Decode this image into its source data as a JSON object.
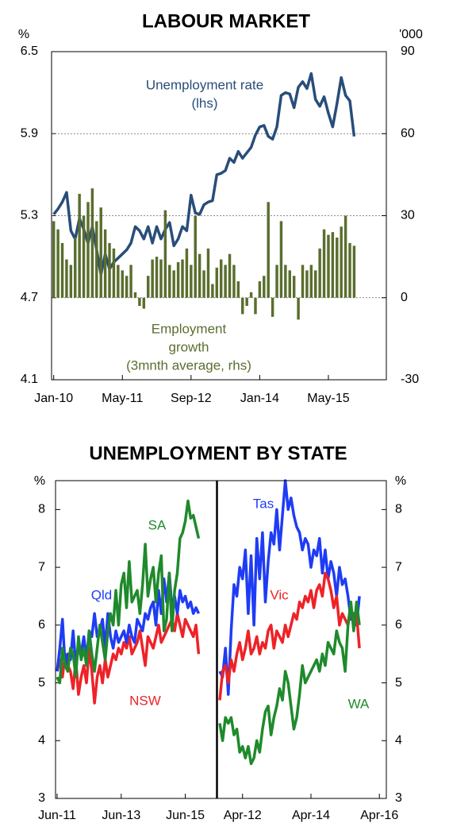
{
  "chart_data": [
    {
      "type": "bar-line",
      "title": "LABOUR MARKET",
      "y_label": "%",
      "y2_label": "'000",
      "categories": [
        "Jan-10",
        null,
        null,
        null,
        null,
        null,
        null,
        null,
        null,
        null,
        null,
        null,
        null,
        null,
        null,
        null,
        "May-11",
        null,
        null,
        null,
        null,
        null,
        null,
        null,
        null,
        null,
        null,
        null,
        null,
        null,
        null,
        null,
        "Sep-12",
        null,
        null,
        null,
        null,
        null,
        null,
        null,
        null,
        null,
        null,
        null,
        null,
        null,
        null,
        null,
        "Jan-14",
        null,
        null,
        null,
        null,
        null,
        null,
        null,
        null,
        null,
        null,
        null,
        null,
        null,
        null,
        null,
        "May-15",
        null,
        null,
        null,
        null,
        null,
        null,
        null,
        null,
        null,
        null,
        null,
        null,
        null
      ],
      "series": [
        {
          "type": "line",
          "name_lines": [
            "Unemployment rate",
            "(lhs)"
          ],
          "color": "#284d7a",
          "values": [
            5.31,
            5.35,
            5.4,
            5.47,
            5.19,
            5.13,
            5.28,
            5.2,
            5.1,
            5.22,
            5.05,
            4.87,
            5.02,
            4.91,
            4.96,
            4.99,
            5.02,
            5.05,
            5.1,
            5.22,
            5.19,
            5.13,
            5.22,
            5.1,
            5.22,
            5.13,
            5.2,
            5.25,
            5.08,
            5.13,
            5.22,
            5.19,
            5.45,
            5.32,
            5.31,
            5.38,
            5.4,
            5.41,
            5.6,
            5.61,
            5.63,
            5.72,
            5.69,
            5.77,
            5.72,
            5.76,
            5.8,
            5.89,
            5.95,
            5.96,
            5.88,
            5.86,
            5.95,
            6.18,
            6.2,
            6.19,
            6.09,
            6.24,
            6.28,
            6.23,
            6.34,
            6.15,
            6.1,
            6.17,
            6.05,
            5.95,
            6.12,
            6.31,
            6.18,
            6.14,
            5.88,
            null,
            null,
            null,
            null,
            null,
            null,
            null
          ]
        },
        {
          "type": "bar",
          "axis": "y2",
          "name_lines": [
            "Employment",
            "growth",
            "(3mnth average, rhs)"
          ],
          "color": "#5a6e2e",
          "values": [
            28,
            25,
            20,
            14,
            12,
            22,
            38,
            30,
            35,
            40,
            28,
            33,
            25,
            20,
            18,
            12,
            10,
            8,
            12,
            2,
            -3,
            -4,
            8,
            14,
            15,
            14,
            32,
            12,
            10,
            13,
            14,
            18,
            12,
            30,
            16,
            10,
            18,
            5,
            11,
            14,
            12,
            16,
            12,
            6,
            -6,
            -3,
            2,
            -6,
            6,
            8,
            35,
            -7,
            12,
            28,
            12,
            10,
            8,
            -8,
            12,
            10,
            12,
            10,
            18,
            25,
            23,
            24,
            22,
            26,
            30,
            20,
            19,
            null,
            null,
            null,
            null,
            null,
            null,
            null
          ]
        }
      ],
      "ylim": [
        4.1,
        6.5
      ],
      "yticks": [
        4.1,
        4.7,
        5.3,
        5.9,
        6.5
      ],
      "y2lim": [
        -30,
        90
      ],
      "y2ticks": [
        -30,
        0,
        30,
        60,
        90
      ],
      "grid": true
    },
    {
      "type": "line",
      "title": "UNEMPLOYMENT BY STATE",
      "y_label": "%",
      "y2_label": "%",
      "ylim": [
        3,
        8.5
      ],
      "yticks": [
        3,
        4,
        5,
        6,
        7,
        8
      ],
      "grid": false,
      "panels": [
        {
          "categories": [
            "Jun-11",
            null,
            null,
            null,
            null,
            null,
            null,
            null,
            null,
            null,
            null,
            null,
            null,
            null,
            null,
            null,
            null,
            null,
            null,
            null,
            null,
            null,
            null,
            null,
            "Jun-13",
            null,
            null,
            null,
            null,
            null,
            null,
            null,
            null,
            null,
            null,
            null,
            null,
            null,
            null,
            null,
            null,
            null,
            null,
            null,
            null,
            null,
            null,
            null,
            "Jun-15",
            null,
            null,
            null,
            null,
            null,
            null,
            null,
            null,
            null,
            null,
            null
          ],
          "series": [
            {
              "name": "NSW",
              "color": "#ee2228",
              "values": [
                5.2,
                5.4,
                5.1,
                5.5,
                5.3,
                5.2,
                4.9,
                5.4,
                4.8,
                5.1,
                5.3,
                5.0,
                5.6,
                5.2,
                4.65,
                5.1,
                5.3,
                5.0,
                5.4,
                5.1,
                5.3,
                5.5,
                5.4,
                5.6,
                5.5,
                5.7,
                5.6,
                5.8,
                5.5,
                5.6,
                5.7,
                5.9,
                5.6,
                5.3,
                5.8,
                5.7,
                5.6,
                5.8,
                6.0,
                5.7,
                5.8,
                5.9,
                6.0,
                6.1,
                5.9,
                6.2,
                6.0,
                5.8,
                6.1,
                6.0,
                5.9,
                5.8,
                6.0,
                5.5,
                null,
                null,
                null,
                null,
                null,
                null
              ]
            },
            {
              "name": "Qld",
              "color": "#1f3cf5",
              "values": [
                5.2,
                5.6,
                6.1,
                5.3,
                5.5,
                5.4,
                5.9,
                5.3,
                5.6,
                5.5,
                5.8,
                5.4,
                5.9,
                5.8,
                6.2,
                5.8,
                5.9,
                6.1,
                5.6,
                6.2,
                5.8,
                5.6,
                5.9,
                5.7,
                5.8,
                5.9,
                5.7,
                6.0,
                5.8,
                5.7,
                6.1,
                6.0,
                5.9,
                6.2,
                6.1,
                6.3,
                6.4,
                6.0,
                6.6,
                6.2,
                6.8,
                6.4,
                6.9,
                6.3,
                6.5,
                6.2,
                6.6,
                6.4,
                6.5,
                6.3,
                6.4,
                6.2,
                6.3,
                6.2,
                null,
                null,
                null,
                null,
                null,
                null
              ]
            },
            {
              "name": "SA",
              "color": "#1f8a2c",
              "values": [
                5.1,
                5.0,
                5.6,
                5.3,
                5.2,
                5.6,
                5.5,
                5.1,
                5.8,
                5.4,
                5.6,
                5.3,
                5.9,
                5.5,
                5.2,
                5.6,
                6.0,
                5.7,
                5.4,
                5.9,
                6.2,
                6.0,
                6.6,
                6.0,
                6.7,
                6.9,
                6.3,
                7.1,
                6.4,
                6.5,
                6.6,
                6.2,
                6.7,
                7.4,
                6.5,
                6.8,
                7.0,
                6.4,
                6.9,
                7.2,
                5.9,
                6.1,
                6.9,
                5.9,
                6.6,
                6.9,
                7.5,
                7.6,
                7.8,
                8.15,
                7.85,
                7.9,
                7.7,
                7.5,
                null,
                null,
                null,
                null,
                null,
                null
              ]
            }
          ]
        },
        {
          "categories": [
            null,
            null,
            null,
            null,
            null,
            null,
            null,
            null,
            "Apr-12",
            null,
            null,
            null,
            null,
            null,
            null,
            null,
            null,
            null,
            null,
            null,
            null,
            null,
            null,
            null,
            null,
            null,
            null,
            null,
            null,
            null,
            null,
            null,
            "Apr-14",
            null,
            null,
            null,
            null,
            null,
            null,
            null,
            null,
            null,
            null,
            null,
            null,
            null,
            null,
            null,
            null,
            null,
            null,
            null,
            null,
            null,
            null,
            null,
            "Apr-16",
            null,
            null
          ],
          "series": [
            {
              "name": "Tas",
              "color": "#1f3cf5",
              "values": [
                5.2,
                5.1,
                5.6,
                4.8,
                5.9,
                6.7,
                6.5,
                7.0,
                6.8,
                7.3,
                6.2,
                7.2,
                6.0,
                7.5,
                6.8,
                7.6,
                6.4,
                7.1,
                7.6,
                7.4,
                8.0,
                7.3,
                7.9,
                8.5,
                8.0,
                8.2,
                7.9,
                7.7,
                7.6,
                7.3,
                7.5,
                7.4,
                7.0,
                7.3,
                7.2,
                7.5,
                6.9,
                7.3,
                6.8,
                7.1,
                6.9,
                6.5,
                7.0,
                6.7,
                6.8,
                6.5,
                6.1,
                6.2,
                6.0,
                6.5,
                null,
                null,
                null,
                null,
                null,
                null,
                null,
                null,
                null
              ]
            },
            {
              "name": "Vic",
              "color": "#ee2228",
              "values": [
                4.7,
                5.2,
                5.3,
                5.0,
                5.4,
                5.2,
                5.5,
                5.7,
                5.4,
                5.6,
                5.9,
                5.5,
                5.6,
                5.8,
                5.5,
                5.7,
                5.6,
                5.9,
                6.0,
                5.6,
                5.9,
                5.8,
                5.7,
                6.0,
                5.8,
                6.0,
                6.2,
                6.1,
                6.4,
                6.3,
                6.5,
                6.4,
                6.6,
                6.3,
                6.6,
                6.7,
                6.5,
                6.9,
                6.8,
                6.6,
                6.3,
                6.5,
                6.0,
                6.2,
                6.1,
                6.0,
                6.3,
                6.1,
                6.2,
                5.6,
                null,
                null,
                null,
                null,
                null,
                null,
                null,
                null,
                null
              ]
            },
            {
              "name": "WA",
              "color": "#1f8a2c",
              "values": [
                4.3,
                4.0,
                4.4,
                4.3,
                4.4,
                4.1,
                4.2,
                3.8,
                3.9,
                3.7,
                3.9,
                3.6,
                3.7,
                4.0,
                3.8,
                4.2,
                4.5,
                4.6,
                4.1,
                4.4,
                4.6,
                4.9,
                4.7,
                5.2,
                5.0,
                4.6,
                4.2,
                4.4,
                4.8,
                5.3,
                5.0,
                5.1,
                5.2,
                5.3,
                5.4,
                5.2,
                5.5,
                5.3,
                5.7,
                5.6,
                5.5,
                5.9,
                5.7,
                5.6,
                5.2,
                6.0,
                6.4,
                5.9,
                6.4,
                6.0,
                null,
                null,
                null,
                null,
                null,
                null,
                null,
                null,
                null
              ]
            }
          ]
        }
      ]
    }
  ]
}
